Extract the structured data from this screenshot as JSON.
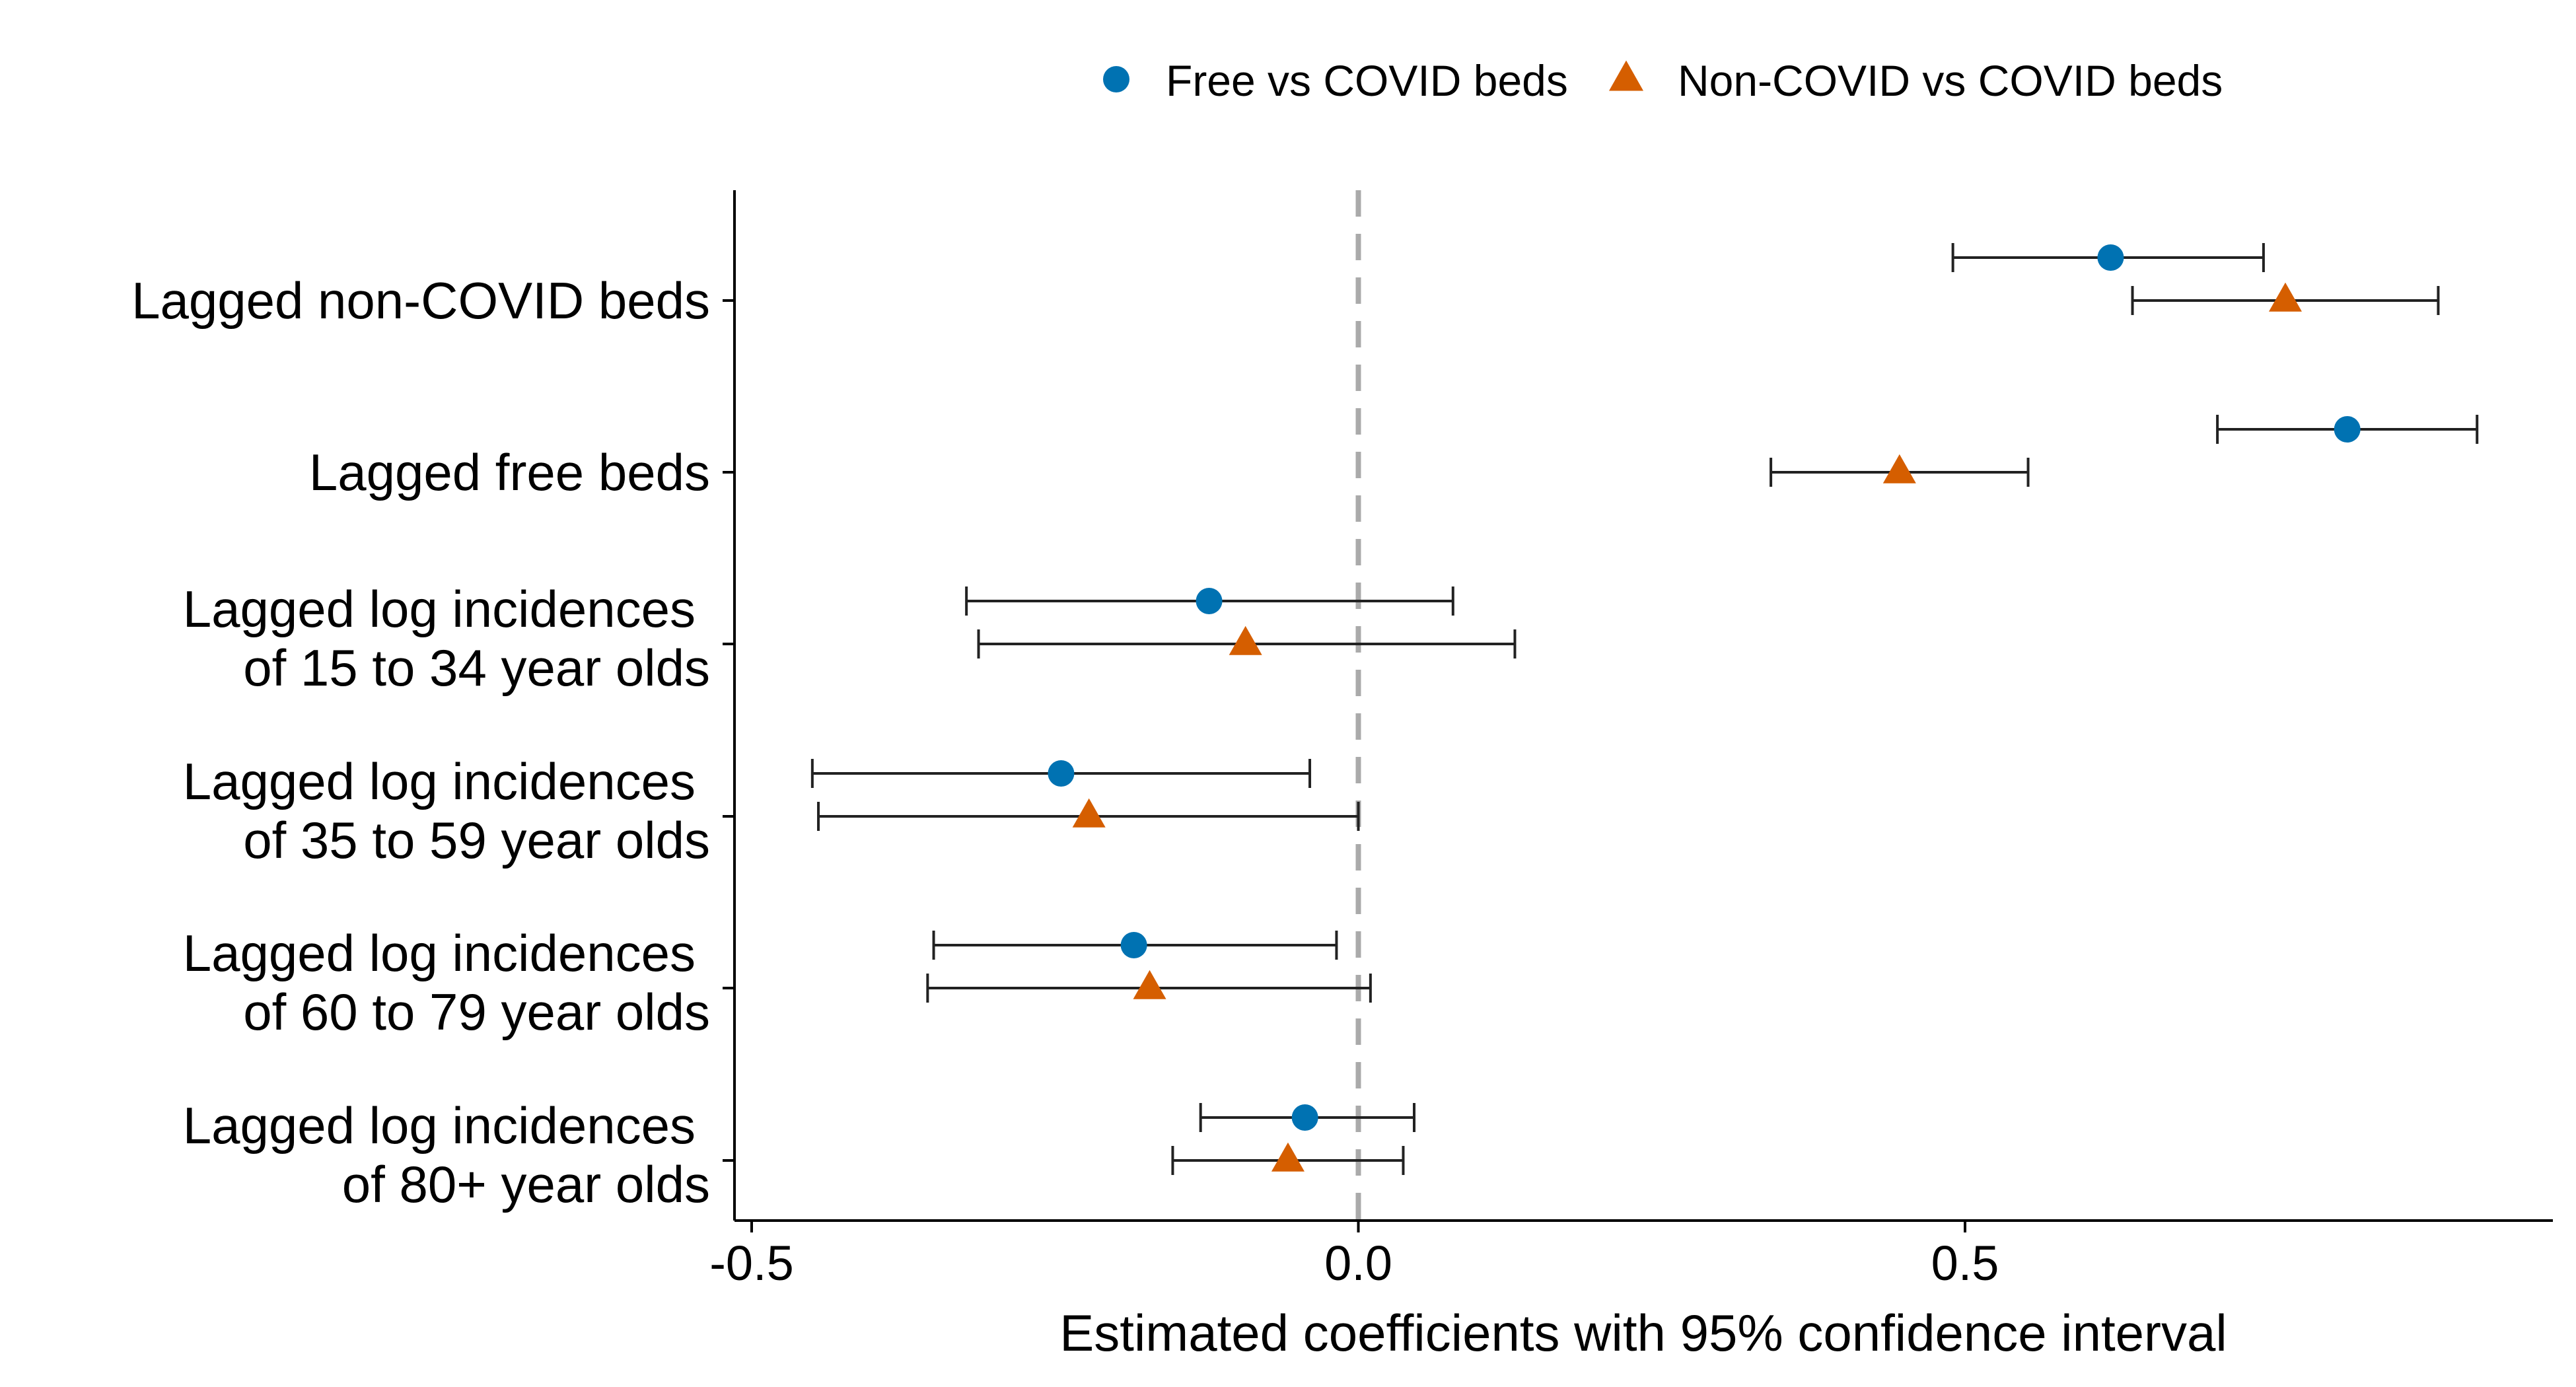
{
  "chart_data": {
    "type": "forest",
    "xlabel": "Estimated coefficients with 95% confidence interval",
    "xlim": [
      -0.52,
      0.98
    ],
    "xticks": [
      {
        "value": -0.5,
        "label": "-0.5"
      },
      {
        "value": 0.0,
        "label": "0.0"
      },
      {
        "value": 0.5,
        "label": "0.5"
      }
    ],
    "reference_line": 0.0,
    "legend": {
      "placement": "top-center",
      "entries": [
        {
          "name": "Free vs COVID beds",
          "marker": "circle",
          "color": "#0072B2"
        },
        {
          "name": "Non-COVID vs COVID beds",
          "marker": "triangle",
          "color": "#D55E00"
        }
      ]
    },
    "categories": [
      {
        "lines": [
          "Lagged non-COVID beds"
        ]
      },
      {
        "lines": [
          "Lagged free beds"
        ]
      },
      {
        "lines": [
          "Lagged log incidences",
          "of 15 to 34 year olds"
        ]
      },
      {
        "lines": [
          "Lagged log incidences",
          "of 35 to 59 year olds"
        ]
      },
      {
        "lines": [
          "Lagged log incidences",
          "of 60 to 79 year olds"
        ]
      },
      {
        "lines": [
          "Lagged log incidences",
          "of 80+ year olds"
        ]
      }
    ],
    "series": [
      {
        "name": "Free vs COVID beds",
        "marker": "circle",
        "color": "#0072B2",
        "estimates": [
          0.62,
          0.815,
          -0.123,
          -0.245,
          -0.185,
          -0.044
        ],
        "lower": [
          0.49,
          0.708,
          -0.323,
          -0.45,
          -0.35,
          -0.13
        ],
        "upper": [
          0.746,
          0.922,
          0.078,
          -0.04,
          -0.018,
          0.046
        ]
      },
      {
        "name": "Non-COVID vs COVID beds",
        "marker": "triangle",
        "color": "#D55E00",
        "estimates": [
          0.764,
          0.446,
          -0.093,
          -0.222,
          -0.172,
          -0.058
        ],
        "lower": [
          0.638,
          0.34,
          -0.313,
          -0.445,
          -0.355,
          -0.153
        ],
        "upper": [
          0.89,
          0.552,
          0.129,
          0.0,
          0.01,
          0.037
        ]
      }
    ]
  }
}
